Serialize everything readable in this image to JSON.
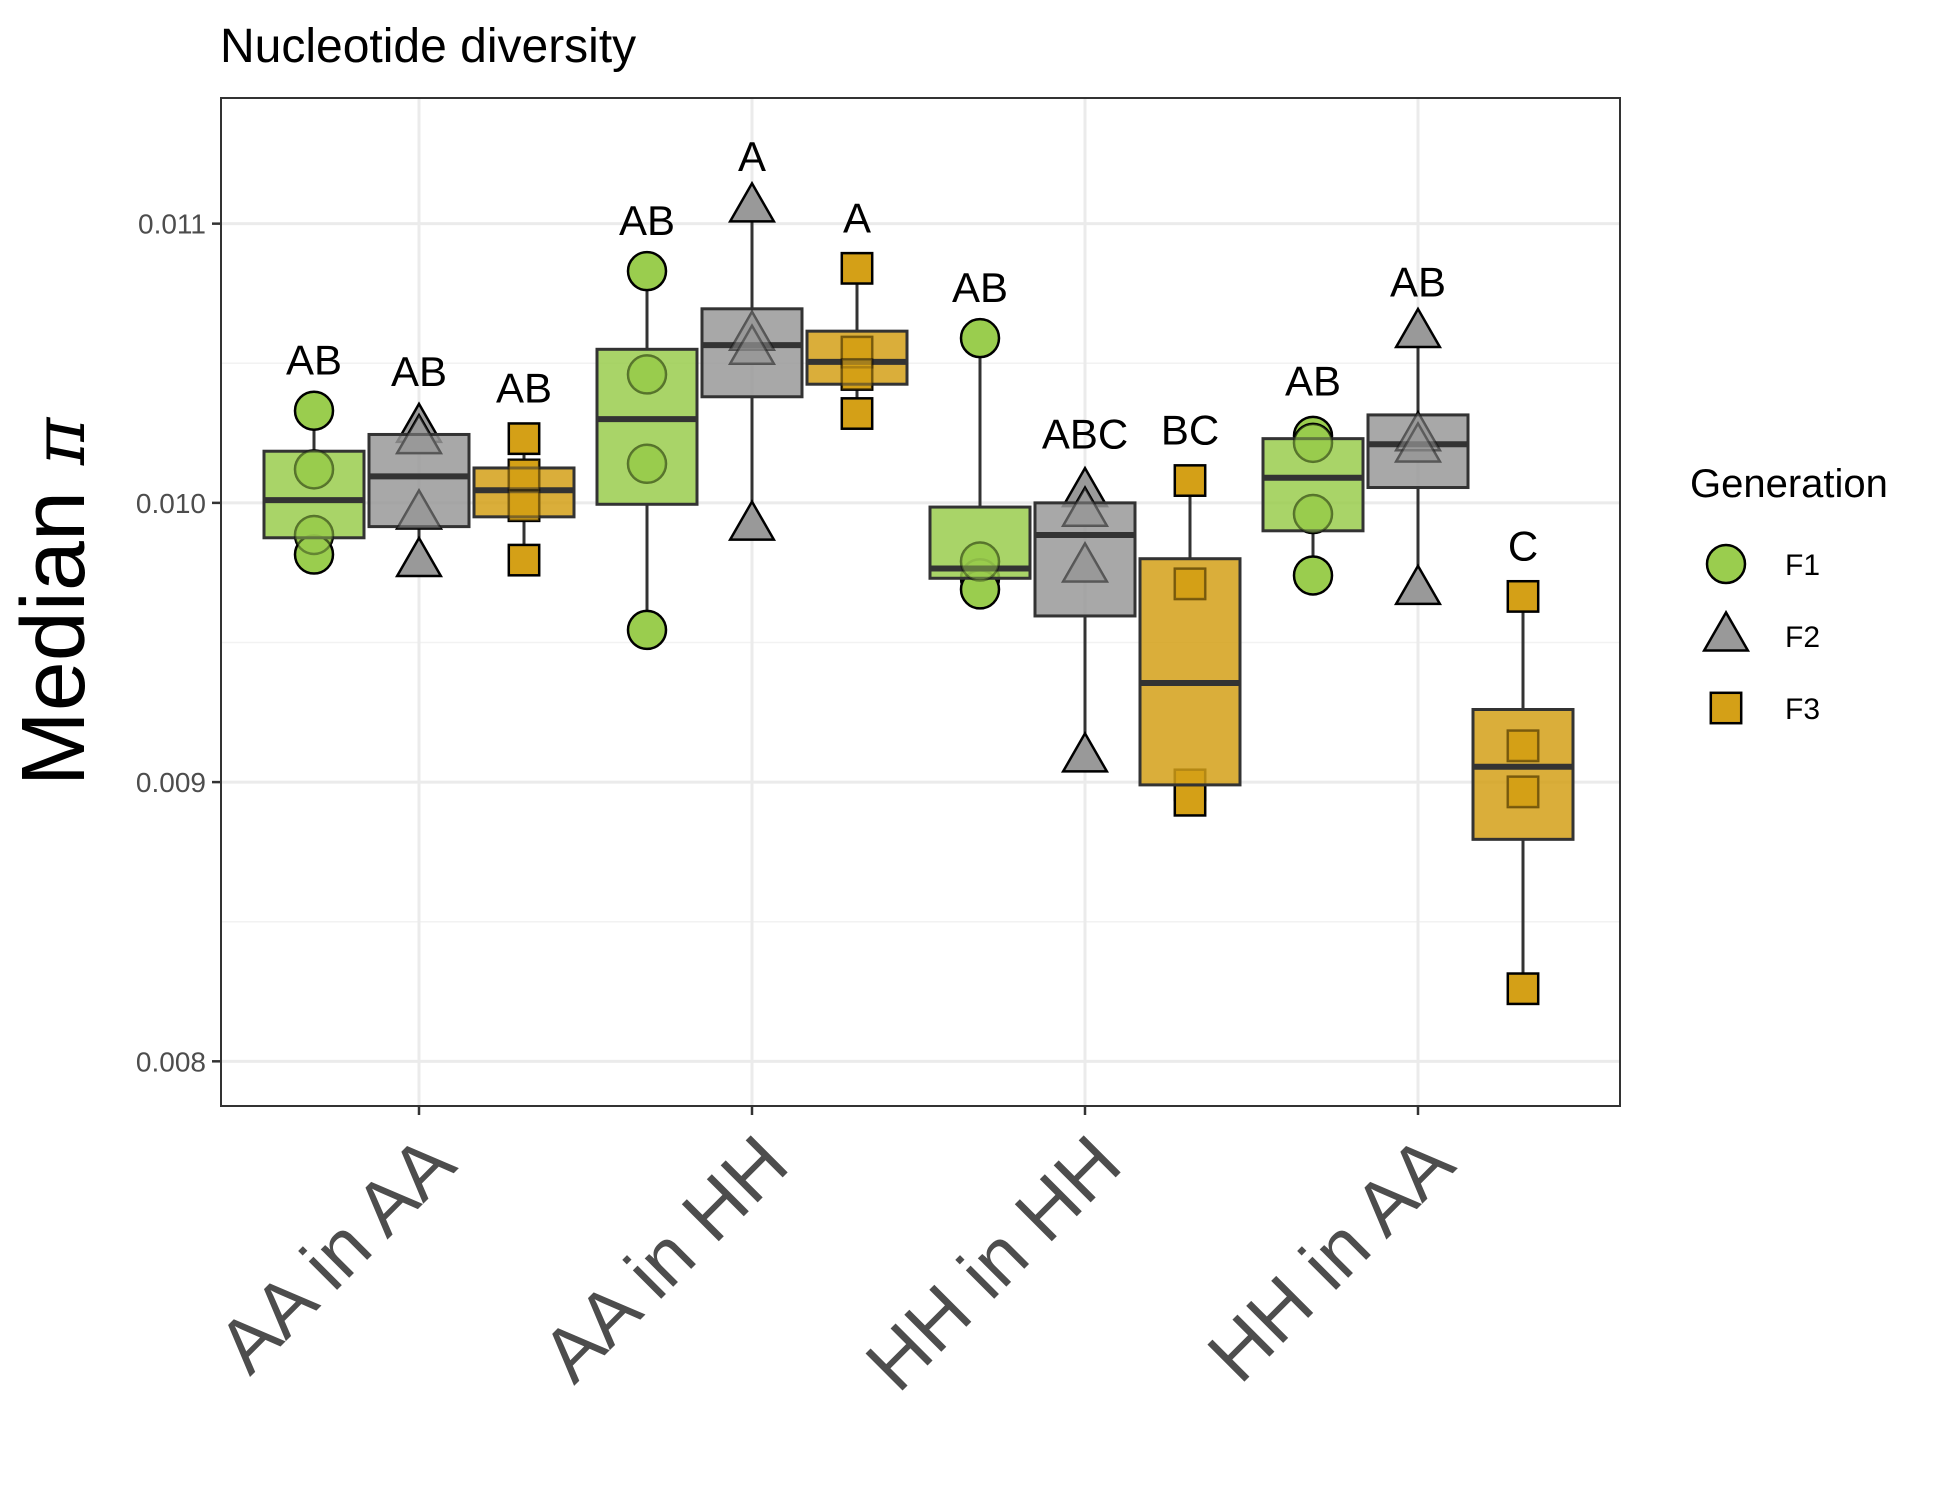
{
  "chart_data": {
    "type": "box",
    "title": "Nucleotide diversity",
    "ylabel": "Median",
    "ylabel_symbol": "π",
    "xlabel": "",
    "ylim": [
      0.00784,
      0.01145
    ],
    "yticks": [
      0.008,
      0.009,
      0.01,
      0.011
    ],
    "ytick_labels": [
      "0.008",
      "0.009",
      "0.010",
      "0.011"
    ],
    "grid": true,
    "legend": {
      "title": "Generation",
      "position": "right",
      "entries": [
        {
          "name": "F1",
          "color": "#9ACD4E",
          "shape": "circle"
        },
        {
          "name": "F2",
          "color": "#999999",
          "shape": "triangle"
        },
        {
          "name": "F3",
          "color": "#D4A017",
          "shape": "square"
        }
      ]
    },
    "categories": [
      "AA in AA",
      "AA in HH",
      "HH in HH",
      "HH in AA"
    ],
    "groups": [
      {
        "category": "AA in AA",
        "boxes": [
          {
            "generation": "F1",
            "q1": 0.009875,
            "median": 0.01001,
            "q3": 0.010185,
            "whisker_low": 0.009815,
            "whisker_high": 0.01033,
            "points": [
              0.01033,
              0.01012,
              0.009885,
              0.009815
            ],
            "letter": "AB"
          },
          {
            "generation": "F2",
            "q1": 0.009915,
            "median": 0.010095,
            "q3": 0.010245,
            "whisker_low": 0.0098,
            "whisker_high": 0.01029,
            "points": [
              0.01027,
              0.01023,
              0.00996,
              0.00979
            ],
            "letter": "AB"
          },
          {
            "generation": "F3",
            "q1": 0.00995,
            "median": 0.010045,
            "q3": 0.010125,
            "whisker_low": 0.009795,
            "whisker_high": 0.01023,
            "points": [
              0.01023,
              0.0101,
              0.00999,
              0.009795
            ],
            "letter": "AB"
          }
        ]
      },
      {
        "category": "AA in HH",
        "boxes": [
          {
            "generation": "F1",
            "q1": 0.009995,
            "median": 0.0103,
            "q3": 0.01055,
            "whisker_low": 0.009545,
            "whisker_high": 0.01083,
            "points": [
              0.01083,
              0.01046,
              0.01014,
              0.009545
            ],
            "letter": "AB"
          },
          {
            "generation": "F2",
            "q1": 0.01038,
            "median": 0.010565,
            "q3": 0.010695,
            "whisker_low": 0.00989,
            "whisker_high": 0.01103,
            "points": [
              0.01106,
              0.0106,
              0.01055,
              0.00992
            ],
            "letter": "A"
          },
          {
            "generation": "F3",
            "q1": 0.010425,
            "median": 0.010505,
            "q3": 0.010615,
            "whisker_low": 0.0103,
            "whisker_high": 0.01084,
            "points": [
              0.01084,
              0.01054,
              0.01046,
              0.01032
            ],
            "letter": "A"
          }
        ]
      },
      {
        "category": "HH in HH",
        "boxes": [
          {
            "generation": "F1",
            "q1": 0.00973,
            "median": 0.009765,
            "q3": 0.009985,
            "whisker_low": 0.00969,
            "whisker_high": 0.01058,
            "points": [
              0.01059,
              0.00979,
              0.00973,
              0.00969
            ],
            "letter": "AB"
          },
          {
            "generation": "F2",
            "q1": 0.009595,
            "median": 0.009885,
            "q3": 0.01,
            "whisker_low": 0.009085,
            "whisker_high": 0.010065,
            "points": [
              0.01004,
              0.00997,
              0.00977,
              0.00909
            ],
            "letter": "ABC"
          },
          {
            "generation": "F3",
            "q1": 0.00899,
            "median": 0.009355,
            "q3": 0.0098,
            "whisker_low": 0.008965,
            "whisker_high": 0.010075,
            "points": [
              0.01008,
              0.00971,
              0.00899,
              0.008935
            ],
            "letter": "BC"
          }
        ]
      },
      {
        "category": "HH in AA",
        "boxes": [
          {
            "generation": "F1",
            "q1": 0.0099,
            "median": 0.01009,
            "q3": 0.01023,
            "whisker_low": 0.00974,
            "whisker_high": 0.010255,
            "points": [
              0.01024,
              0.010215,
              0.00996,
              0.00974
            ],
            "letter": "AB"
          },
          {
            "generation": "F2",
            "q1": 0.010055,
            "median": 0.01021,
            "q3": 0.010315,
            "whisker_low": 0.00968,
            "whisker_high": 0.01058,
            "points": [
              0.01061,
              0.01024,
              0.0102,
              0.00969
            ],
            "letter": "AB"
          },
          {
            "generation": "F3",
            "q1": 0.008795,
            "median": 0.009055,
            "q3": 0.00926,
            "whisker_low": 0.00828,
            "whisker_high": 0.00965,
            "points": [
              0.009665,
              0.00913,
              0.008965,
              0.00826
            ],
            "letter": "C"
          }
        ]
      }
    ]
  }
}
